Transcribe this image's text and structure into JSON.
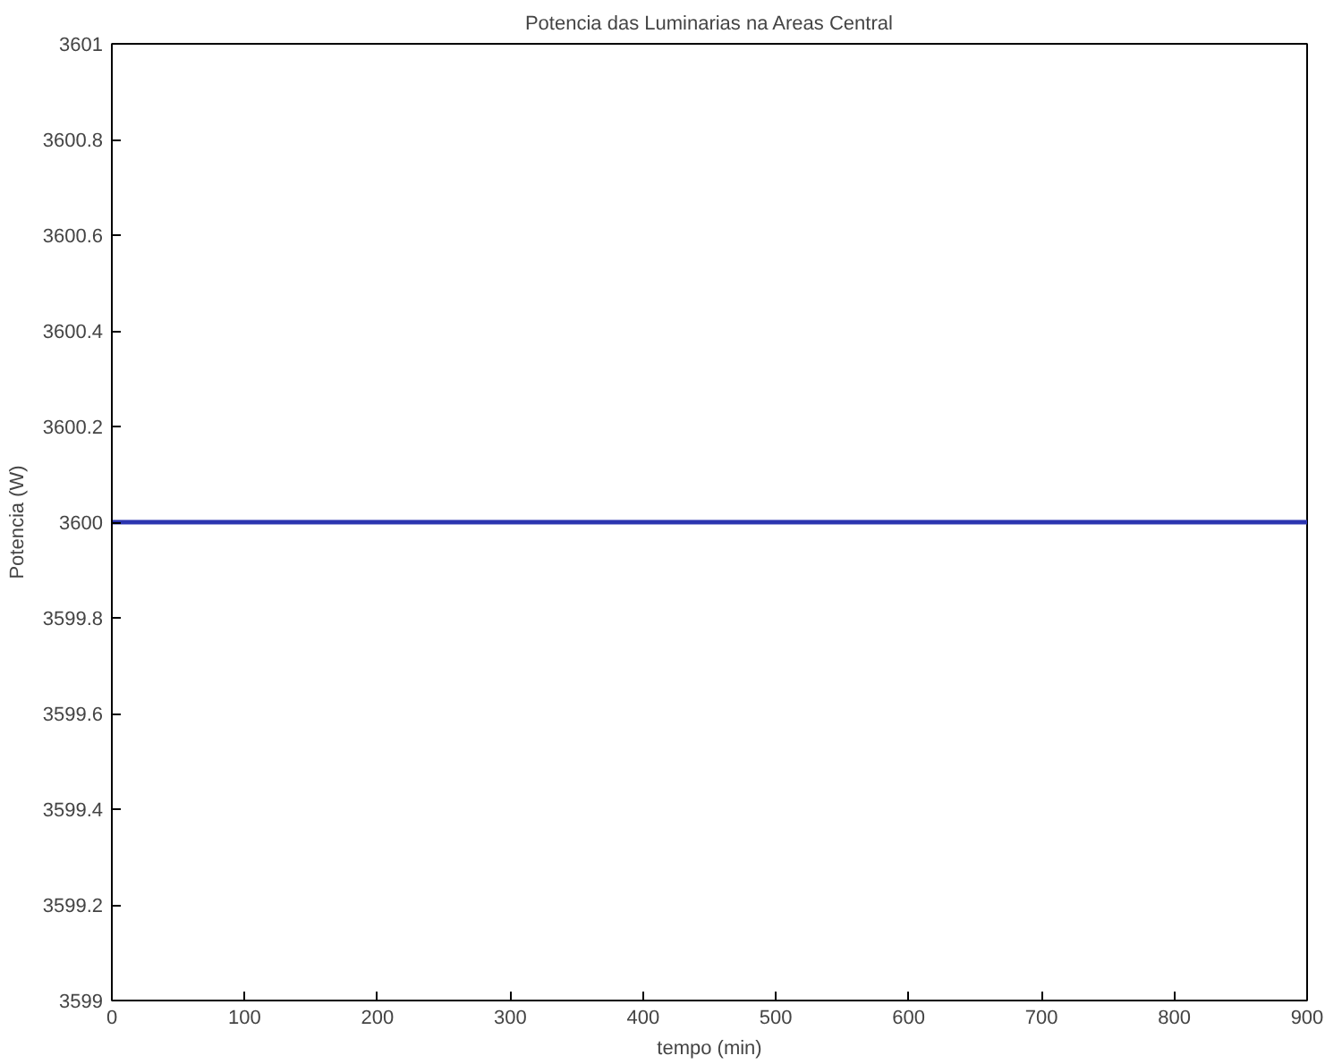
{
  "chart_data": {
    "type": "line",
    "title": "Potencia das Luminarias na Areas Central",
    "xlabel": "tempo (min)",
    "ylabel": "Potencia (W)",
    "x": [
      0,
      900
    ],
    "series": [
      {
        "color": "#2b35b0",
        "values": [
          3600,
          3600
        ]
      }
    ],
    "xlim": [
      0,
      900
    ],
    "xticks": [
      0,
      100,
      200,
      300,
      400,
      500,
      600,
      700,
      800,
      900
    ],
    "ylim": [
      3599,
      3601
    ],
    "yticks": [
      3599,
      {
        "value": 3599.2,
        "label": "3599.2"
      },
      {
        "value": 3599.4,
        "label": "3599.4"
      },
      {
        "value": 3599.6,
        "label": "3599.6"
      },
      {
        "value": 3599.8,
        "label": "3599.8"
      },
      3600,
      {
        "value": 3600.2,
        "label": "3600.2"
      },
      {
        "value": 3600.4,
        "label": "3600.4"
      },
      {
        "value": 3600.6,
        "label": "3600.6"
      },
      {
        "value": 3600.8,
        "label": "3600.8"
      },
      3601
    ],
    "grid": false,
    "marker": "none",
    "line_style": "solid"
  }
}
